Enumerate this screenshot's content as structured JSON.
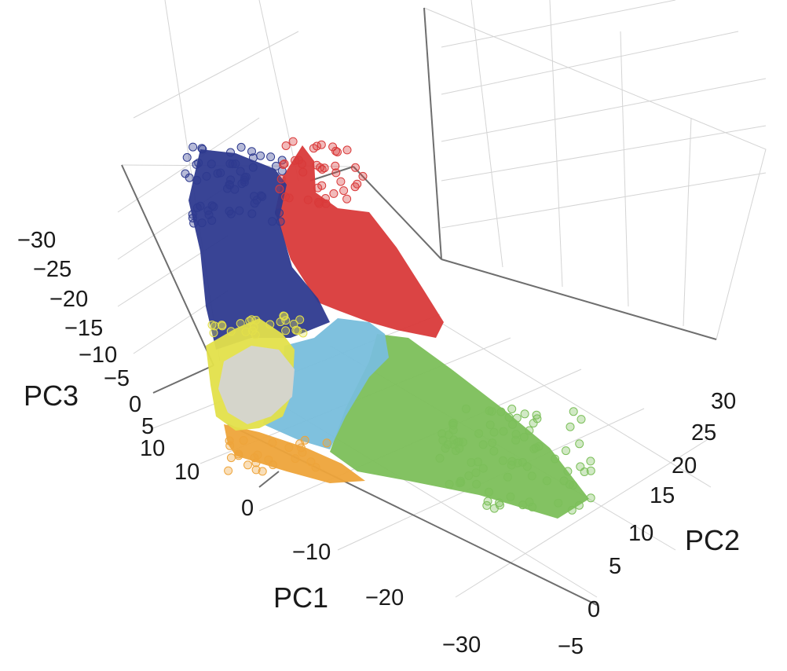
{
  "chart_data": {
    "type": "scatter",
    "subtype": "3d-scatter",
    "title": "",
    "axes": {
      "pc1": {
        "label": "PC1",
        "ticks": [
          "0",
          "−10",
          "−20",
          "−30"
        ]
      },
      "pc2": {
        "label": "PC2",
        "ticks": [
          "−5",
          "0",
          "5",
          "10",
          "15",
          "20",
          "25",
          "30"
        ]
      },
      "pc3": {
        "label": "PC3",
        "ticks": [
          "−30",
          "−25",
          "−20",
          "−15",
          "−10",
          "−5",
          "0",
          "5",
          "10",
          "10"
        ]
      }
    },
    "clusters": [
      {
        "name": "blue",
        "color": "#2e3a8f"
      },
      {
        "name": "red",
        "color": "#d93a3a"
      },
      {
        "name": "yellow",
        "color": "#e3e04a"
      },
      {
        "name": "gray",
        "color": "#d4d4d2"
      },
      {
        "name": "light-blue",
        "color": "#78bedc"
      },
      {
        "name": "green",
        "color": "#7cbf5a"
      },
      {
        "name": "orange",
        "color": "#eea43a"
      }
    ],
    "grid": true,
    "legend": "none"
  }
}
